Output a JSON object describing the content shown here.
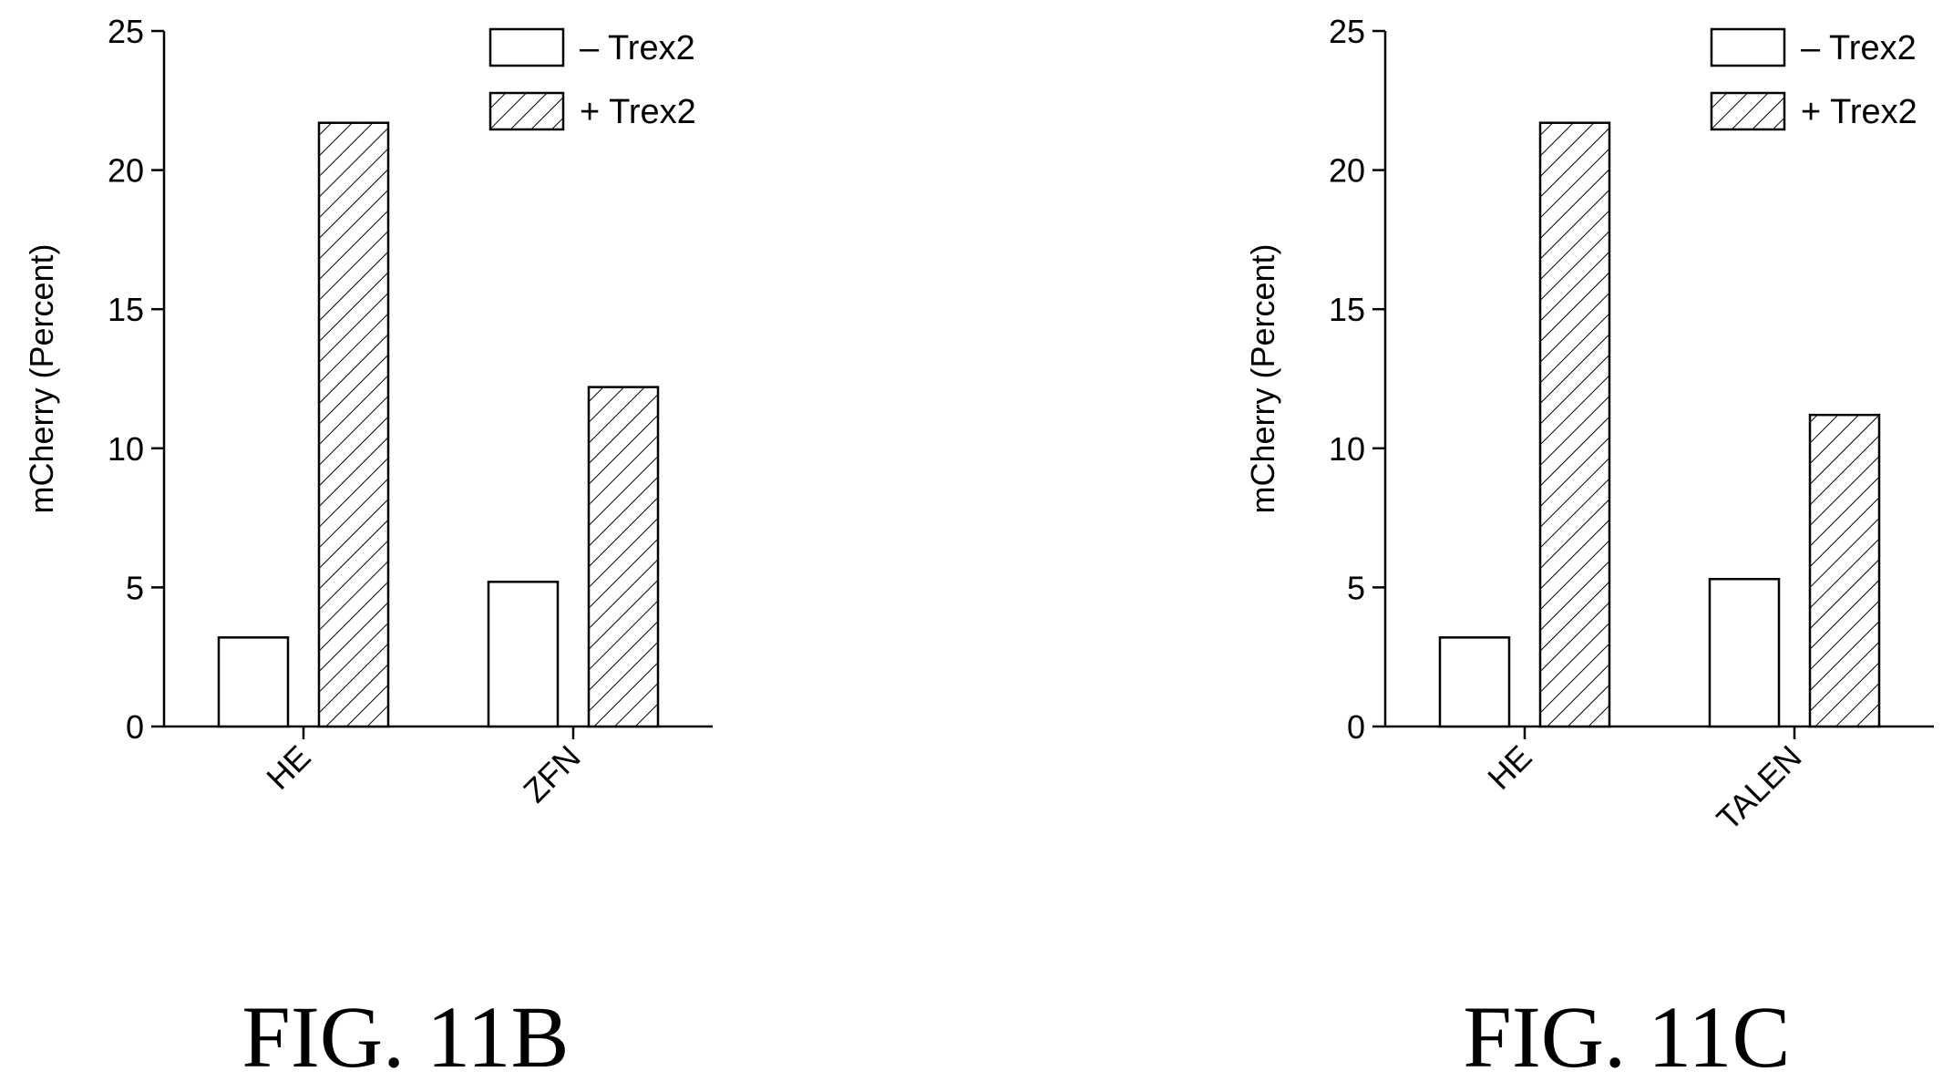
{
  "figures": [
    {
      "caption": "FIG. 11B",
      "chart_data": {
        "type": "bar",
        "categories": [
          "HE",
          "ZFN"
        ],
        "series": [
          {
            "name": "– Trex2",
            "values": [
              3.2,
              5.2
            ],
            "pattern": "none"
          },
          {
            "name": "+ Trex2",
            "values": [
              21.7,
              12.2
            ],
            "pattern": "hatch"
          }
        ],
        "ylabel": "mCherry (Percent)",
        "ylim": [
          0,
          25
        ],
        "yticks": [
          0,
          5,
          10,
          15,
          20,
          25
        ],
        "grid": false,
        "legend_position": "top-right"
      }
    },
    {
      "caption": "FIG. 11C",
      "chart_data": {
        "type": "bar",
        "categories": [
          "HE",
          "TALEN"
        ],
        "series": [
          {
            "name": "– Trex2",
            "values": [
              3.2,
              5.3
            ],
            "pattern": "none"
          },
          {
            "name": "+ Trex2",
            "values": [
              21.7,
              11.2
            ],
            "pattern": "hatch"
          }
        ],
        "ylabel": "mCherry (Percent)",
        "ylim": [
          0,
          25
        ],
        "yticks": [
          0,
          5,
          10,
          15,
          20,
          25
        ],
        "grid": false,
        "legend_position": "top-right"
      }
    }
  ],
  "colors": {
    "ink": "#000000",
    "bar_fill": "#ffffff",
    "background": "#ffffff"
  }
}
